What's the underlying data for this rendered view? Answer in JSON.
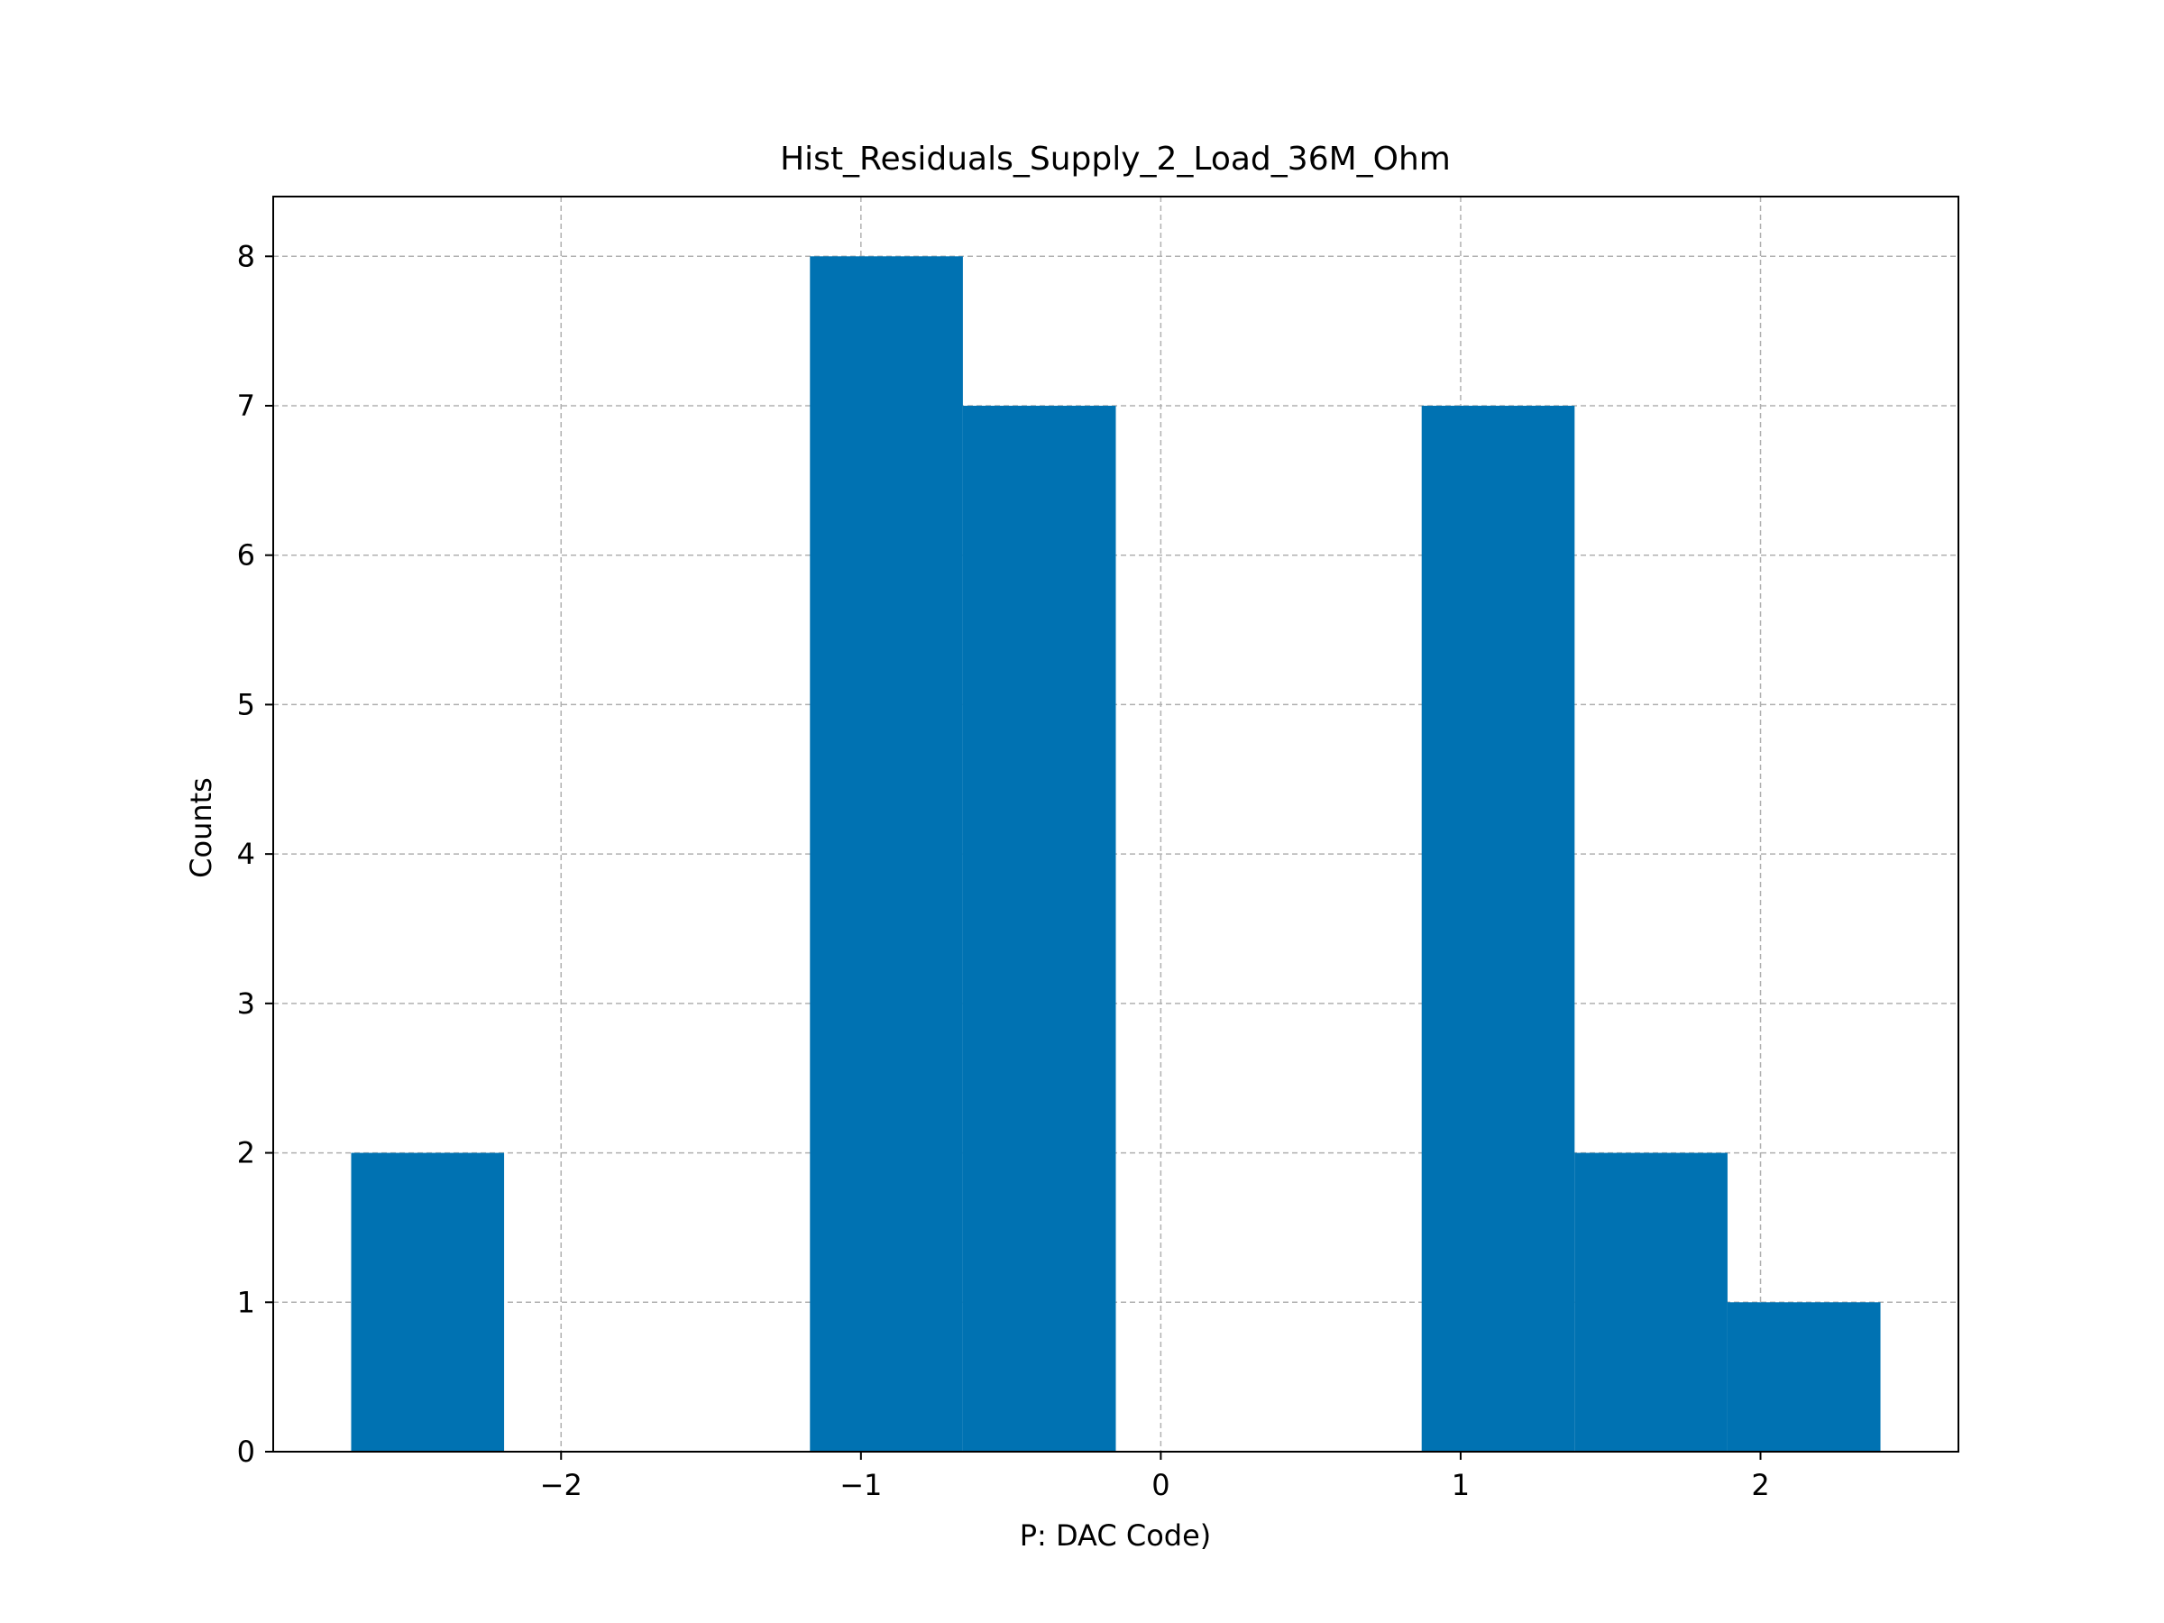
{
  "chart_data": {
    "type": "bar",
    "title": "Hist_Residuals_Supply_2_Load_36M_Ohm",
    "xlabel": "P: DAC Code)",
    "ylabel": "Counts",
    "xlim": [
      -2.96,
      2.66
    ],
    "ylim": [
      0,
      8.4
    ],
    "xticks": [
      -2,
      -1,
      0,
      1,
      2
    ],
    "xtick_labels": [
      "−2",
      "−1",
      "0",
      "1",
      "2"
    ],
    "yticks": [
      0,
      1,
      2,
      3,
      4,
      5,
      6,
      7,
      8
    ],
    "ytick_labels": [
      "0",
      "1",
      "2",
      "3",
      "4",
      "5",
      "6",
      "7",
      "8"
    ],
    "grid": true,
    "bar_color": "#0072b2",
    "bins": [
      {
        "x0": -2.7,
        "x1": -2.19,
        "count": 2
      },
      {
        "x0": -2.19,
        "x1": -1.68,
        "count": 0
      },
      {
        "x0": -1.68,
        "x1": -1.17,
        "count": 0
      },
      {
        "x0": -1.17,
        "x1": -0.66,
        "count": 8
      },
      {
        "x0": -0.66,
        "x1": -0.15,
        "count": 7
      },
      {
        "x0": -0.15,
        "x1": 0.36,
        "count": 0
      },
      {
        "x0": 0.36,
        "x1": 0.87,
        "count": 0
      },
      {
        "x0": 0.87,
        "x1": 1.38,
        "count": 7
      },
      {
        "x0": 1.38,
        "x1": 1.89,
        "count": 2
      },
      {
        "x0": 1.89,
        "x1": 2.4,
        "count": 1
      }
    ]
  }
}
